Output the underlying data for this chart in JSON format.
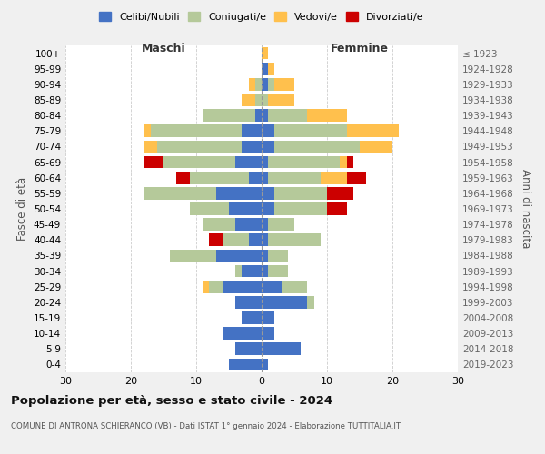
{
  "age_groups": [
    "0-4",
    "5-9",
    "10-14",
    "15-19",
    "20-24",
    "25-29",
    "30-34",
    "35-39",
    "40-44",
    "45-49",
    "50-54",
    "55-59",
    "60-64",
    "65-69",
    "70-74",
    "75-79",
    "80-84",
    "85-89",
    "90-94",
    "95-99",
    "100+"
  ],
  "birth_years": [
    "2019-2023",
    "2014-2018",
    "2009-2013",
    "2004-2008",
    "1999-2003",
    "1994-1998",
    "1989-1993",
    "1984-1988",
    "1979-1983",
    "1974-1978",
    "1969-1973",
    "1964-1968",
    "1959-1963",
    "1954-1958",
    "1949-1953",
    "1944-1948",
    "1939-1943",
    "1934-1938",
    "1929-1933",
    "1924-1928",
    "≤ 1923"
  ],
  "male": {
    "celibi": [
      5,
      4,
      6,
      3,
      4,
      6,
      3,
      7,
      2,
      4,
      5,
      7,
      2,
      4,
      3,
      3,
      1,
      0,
      0,
      0,
      0
    ],
    "coniugati": [
      0,
      0,
      0,
      0,
      0,
      2,
      1,
      7,
      4,
      5,
      6,
      11,
      9,
      11,
      13,
      14,
      8,
      1,
      1,
      0,
      0
    ],
    "vedovi": [
      0,
      0,
      0,
      0,
      0,
      1,
      0,
      0,
      0,
      0,
      0,
      0,
      0,
      0,
      2,
      1,
      0,
      2,
      1,
      0,
      0
    ],
    "divorziati": [
      0,
      0,
      0,
      0,
      0,
      0,
      0,
      0,
      2,
      0,
      0,
      0,
      2,
      3,
      0,
      0,
      0,
      0,
      0,
      0,
      0
    ]
  },
  "female": {
    "nubili": [
      1,
      6,
      2,
      2,
      7,
      3,
      1,
      1,
      1,
      1,
      2,
      2,
      1,
      1,
      2,
      2,
      1,
      0,
      1,
      1,
      0
    ],
    "coniugate": [
      0,
      0,
      0,
      0,
      1,
      4,
      3,
      3,
      8,
      4,
      8,
      8,
      8,
      11,
      13,
      11,
      6,
      1,
      1,
      0,
      0
    ],
    "vedove": [
      0,
      0,
      0,
      0,
      0,
      0,
      0,
      0,
      0,
      0,
      0,
      0,
      4,
      1,
      5,
      8,
      6,
      4,
      3,
      1,
      1
    ],
    "divorziate": [
      0,
      0,
      0,
      0,
      0,
      0,
      0,
      0,
      0,
      0,
      3,
      4,
      3,
      1,
      0,
      0,
      0,
      0,
      0,
      0,
      0
    ]
  },
  "colors": {
    "celibi": "#4472c4",
    "coniugati": "#b5c99a",
    "vedovi": "#ffc04d",
    "divorziati": "#cc0000"
  },
  "title": "Popolazione per età, sesso e stato civile - 2024",
  "subtitle": "COMUNE DI ANTRONA SCHIERANCO (VB) - Dati ISTAT 1° gennaio 2024 - Elaborazione TUTTITALIA.IT",
  "xlim": 30,
  "ylabel_left": "Fasce di età",
  "ylabel_right": "Anni di nascita",
  "xlabel_male": "Maschi",
  "xlabel_female": "Femmine",
  "legend_labels": [
    "Celibi/Nubili",
    "Coniugati/e",
    "Vedovi/e",
    "Divorziati/e"
  ],
  "bg_color": "#f0f0f0",
  "plot_bg": "#ffffff"
}
